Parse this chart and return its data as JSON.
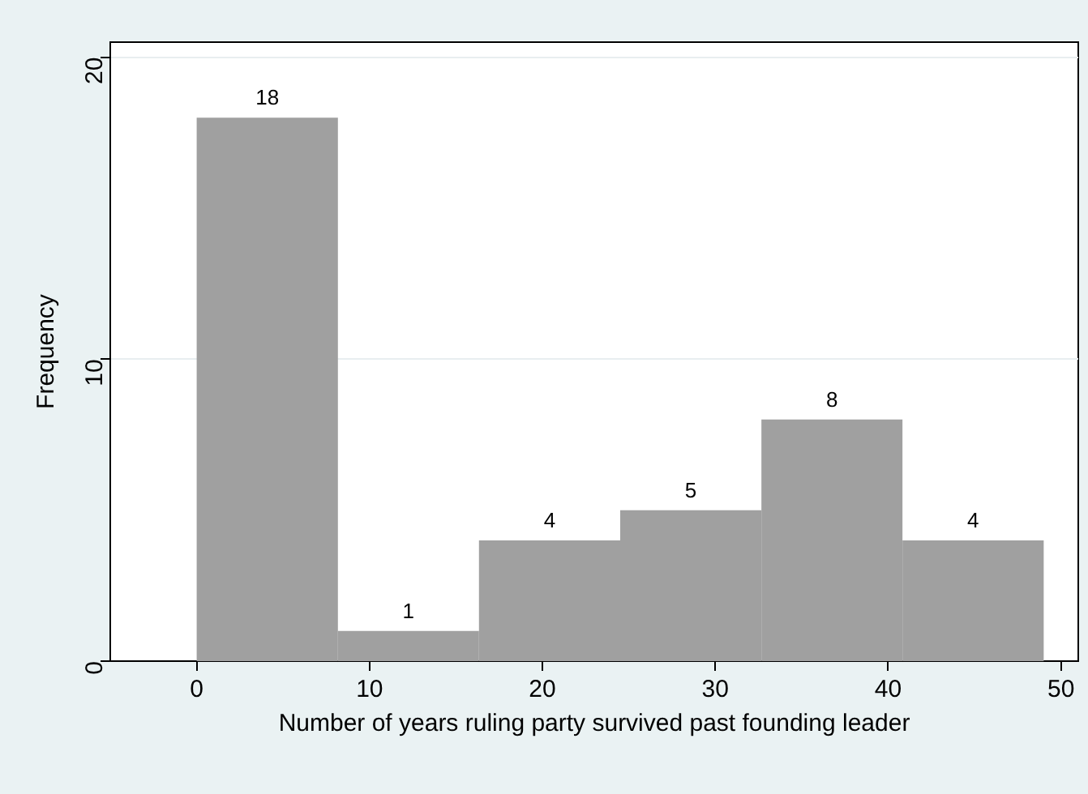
{
  "chart_data": {
    "type": "histogram",
    "xlabel": "Number of years ruling party survived past founding leader",
    "ylabel": "Frequency",
    "bins": [
      0,
      8.17,
      16.33,
      24.5,
      32.67,
      40.83,
      49
    ],
    "values": [
      18,
      1,
      4,
      5,
      8,
      4
    ],
    "color": "#a0a0a0",
    "xlim": [
      -5,
      51
    ],
    "xticks": [
      0,
      10,
      20,
      30,
      40,
      50
    ],
    "ylim": [
      0,
      20.5
    ],
    "yticks": [
      0,
      10,
      20
    ],
    "grid": "y",
    "data_labels": true,
    "legend": false
  }
}
